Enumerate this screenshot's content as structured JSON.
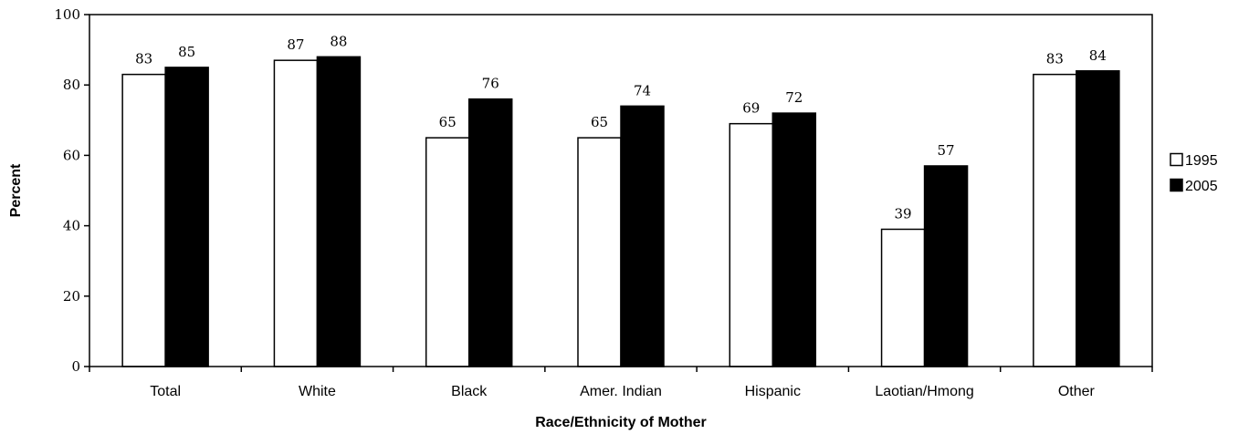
{
  "chart_data": {
    "type": "bar",
    "title": "",
    "xlabel": "Race/Ethnicity of Mother",
    "ylabel": "Percent",
    "ylim": [
      0,
      100
    ],
    "yticks": [
      0,
      20,
      40,
      60,
      80,
      100
    ],
    "grid": false,
    "legend_position": "right",
    "categories": [
      "Total",
      "White",
      "Black",
      "Amer. Indian",
      "Hispanic",
      "Laotian/Hmong",
      "Other"
    ],
    "series": [
      {
        "name": "1995",
        "color": "#ffffff",
        "values": [
          83,
          87,
          65,
          65,
          69,
          39,
          83
        ]
      },
      {
        "name": "2005",
        "color": "#000000",
        "values": [
          85,
          88,
          76,
          74,
          72,
          57,
          84
        ]
      }
    ]
  }
}
